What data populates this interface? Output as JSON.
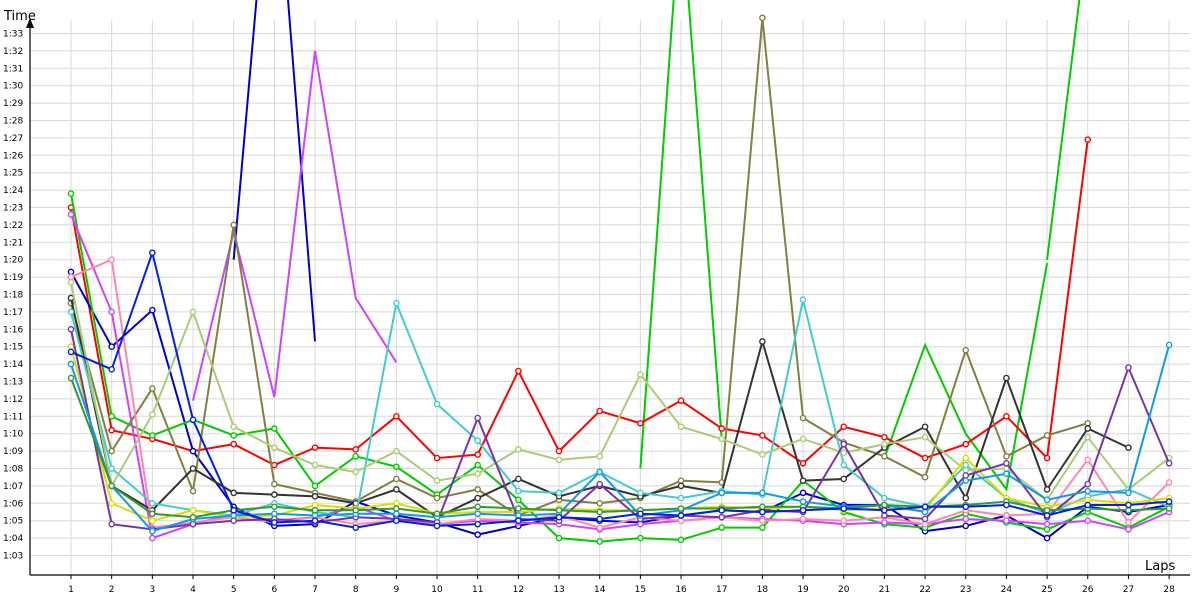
{
  "chart_data": {
    "type": "line",
    "xlabel": "Laps",
    "ylabel": "Time",
    "x": [
      1,
      2,
      3,
      4,
      5,
      6,
      7,
      8,
      9,
      10,
      11,
      12,
      13,
      14,
      15,
      16,
      17,
      18,
      19,
      20,
      21,
      22,
      23,
      24,
      25,
      26,
      27,
      28
    ],
    "x_ticks": [
      "1",
      "2",
      "3",
      "4",
      "5",
      "6",
      "7",
      "8",
      "9",
      "10",
      "11",
      "12",
      "13",
      "14",
      "15",
      "16",
      "17",
      "18",
      "19",
      "20",
      "21",
      "22",
      "23",
      "24",
      "25",
      "26",
      "27",
      "28"
    ],
    "y_ticks": [
      "1:03",
      "1:04",
      "1:05",
      "1:06",
      "1:07",
      "1:08",
      "1:09",
      "1:10",
      "1:11",
      "1:12",
      "1:13",
      "1:14",
      "1:15",
      "1:16",
      "1:17",
      "1:18",
      "1:19",
      "1:20",
      "1:21",
      "1:22",
      "1:23",
      "1:24",
      "1:25",
      "1:26",
      "1:27",
      "1:28",
      "1:29",
      "1:30",
      "1:31",
      "1:32",
      "1:33"
    ],
    "y_unit": "seconds",
    "ylim": [
      62,
      96
    ],
    "grid": true,
    "legend": "none",
    "series": [
      {
        "color": "#ff0000",
        "values": [
          83.0,
          70.2,
          69.7,
          69.0,
          69.4,
          68.2,
          69.2,
          69.1,
          71.0,
          68.6,
          68.8,
          73.6,
          69.0,
          71.3,
          70.6,
          71.9,
          70.3,
          69.9,
          68.3,
          70.4,
          69.8,
          68.6,
          69.4,
          71.0,
          68.6,
          86.9,
          null,
          null
        ]
      },
      {
        "color": "#0000cc",
        "values": [
          79.3,
          75.0,
          77.1,
          69.0,
          65.8,
          64.7,
          64.8,
          66.1,
          65.3,
          64.9,
          64.2,
          64.7,
          65.2,
          65.0,
          64.9,
          65.3,
          65.6,
          65.5,
          66.6,
          65.9,
          65.9,
          64.4,
          64.7,
          65.3,
          64.0,
          65.8,
          65.5,
          65.9
        ]
      },
      {
        "color": "#00cc00",
        "values": [
          83.8,
          71.0,
          69.9,
          70.8,
          69.9,
          70.3,
          67.0,
          68.7,
          68.1,
          66.5,
          68.2,
          66.2,
          64.0,
          63.8,
          64.0,
          63.9,
          64.6,
          64.6,
          67.3,
          65.5,
          64.8,
          64.6,
          65.4,
          64.9,
          64.5,
          65.5,
          64.6,
          65.8
        ]
      },
      {
        "color": "#cc44ff",
        "values": [
          82.6,
          77.0,
          64.0,
          64.8,
          65.4,
          65.0,
          65.2,
          65.8,
          65.0,
          64.8,
          65.0,
          64.9,
          64.8,
          64.5,
          64.8,
          65.0,
          65.2,
          65.1,
          65.0,
          64.8,
          64.9,
          64.8,
          65.1,
          65.0,
          64.8,
          65.0,
          64.5,
          65.5
        ]
      },
      {
        "color": "#808040",
        "values": [
          77.5,
          69.0,
          72.6,
          66.7,
          82.0,
          67.1,
          66.6,
          66.1,
          67.4,
          66.3,
          66.8,
          65.3,
          66.2,
          66.0,
          66.3,
          67.3,
          67.2,
          93.9,
          70.9,
          69.5,
          68.7,
          67.5,
          74.8,
          68.7,
          69.9,
          70.6,
          null,
          null
        ]
      },
      {
        "color": "#333333",
        "values": [
          77.8,
          67.0,
          65.6,
          68.0,
          66.6,
          66.5,
          66.4,
          66.0,
          66.8,
          65.2,
          66.3,
          67.4,
          66.4,
          67.0,
          66.4,
          67.0,
          66.6,
          75.3,
          67.3,
          67.4,
          69.2,
          70.4,
          66.3,
          73.2,
          66.8,
          70.3,
          69.2,
          null
        ]
      },
      {
        "color": "#44cccc",
        "values": [
          77.0,
          68.0,
          66.0,
          65.6,
          65.3,
          66.0,
          65.5,
          65.2,
          77.5,
          71.7,
          69.6,
          66.7,
          66.6,
          67.8,
          66.6,
          66.3,
          66.7,
          66.5,
          77.7,
          68.2,
          66.3,
          65.8,
          68.2,
          66.3,
          65.4,
          66.4,
          66.8,
          65.8
        ]
      },
      {
        "color": "#aacc77",
        "values": [
          78.7,
          67.0,
          71.1,
          77.0,
          70.4,
          69.2,
          68.2,
          67.8,
          69.0,
          67.3,
          67.7,
          69.1,
          68.5,
          68.7,
          73.4,
          70.4,
          69.7,
          68.8,
          69.7,
          68.9,
          69.4,
          69.8,
          67.9,
          68.0,
          66.2,
          69.8,
          66.8,
          68.6
        ]
      },
      {
        "color": "#ff88aa",
        "values": [
          79.0,
          80.0,
          64.6,
          64.9,
          65.2,
          64.9,
          65.2,
          64.8,
          65.0,
          64.8,
          65.1,
          65.0,
          65.3,
          64.6,
          65.2,
          65.0,
          65.2,
          65.0,
          65.1,
          65.0,
          65.2,
          64.8,
          65.6,
          65.3,
          65.4,
          68.5,
          64.9,
          67.2
        ]
      },
      {
        "color": "#dddd00",
        "values": [
          75.0,
          66.0,
          65.0,
          65.6,
          65.2,
          65.3,
          65.9,
          65.7,
          66.0,
          65.4,
          65.5,
          65.5,
          65.7,
          65.6,
          65.6,
          65.7,
          65.8,
          65.7,
          65.8,
          65.6,
          65.7,
          65.6,
          68.6,
          66.3,
          65.8,
          66.2,
          66.0,
          66.3
        ]
      },
      {
        "color": "#7733aa",
        "values": [
          76.0,
          64.8,
          64.5,
          64.8,
          65.0,
          65.1,
          64.9,
          65.2,
          65.1,
          64.9,
          70.9,
          65.1,
          65.0,
          67.1,
          65.1,
          65.3,
          65.2,
          65.6,
          65.5,
          69.4,
          65.3,
          65.1,
          67.6,
          68.3,
          65.2,
          67.1,
          73.8,
          68.3
        ]
      },
      {
        "color": "#1199ee",
        "values": [
          74.0,
          67.0,
          64.4,
          65.1,
          65.3,
          65.4,
          65.3,
          65.4,
          65.4,
          65.2,
          65.4,
          65.3,
          65.4,
          67.8,
          65.3,
          65.6,
          66.6,
          66.6,
          66.1,
          65.8,
          65.9,
          65.5,
          67.3,
          67.7,
          66.2,
          66.7,
          66.6,
          75.1
        ]
      },
      {
        "color": "#339933",
        "values": [
          73.2,
          67.0,
          65.4,
          65.2,
          65.6,
          65.8,
          65.6,
          65.6,
          65.7,
          65.4,
          65.8,
          65.7,
          65.6,
          65.5,
          65.6,
          65.7,
          65.7,
          65.8,
          65.8,
          65.7,
          65.9,
          65.8,
          65.9,
          66.1,
          65.6,
          65.7,
          65.6,
          65.7
        ]
      },
      {
        "color": "#0022dd",
        "values": [
          74.7,
          73.7,
          80.4,
          70.8,
          65.6,
          64.9,
          65.0,
          64.6,
          65.0,
          64.7,
          64.8,
          65.0,
          65.2,
          65.1,
          65.4,
          65.3,
          65.6,
          65.5,
          65.6,
          65.7,
          65.6,
          65.8,
          65.8,
          65.9,
          65.3,
          65.9,
          65.9,
          66.1
        ]
      }
    ],
    "spikes": [
      {
        "color": "#0000cc",
        "points": [
          [
            5,
            80.0
          ],
          [
            5.6,
            96.0
          ]
        ]
      },
      {
        "color": "#0000cc",
        "points": [
          [
            6.3,
            96.0
          ],
          [
            7,
            75.3
          ]
        ]
      },
      {
        "color": "#00cc00",
        "points": [
          [
            15,
            68.0
          ],
          [
            15.85,
            96.0
          ]
        ]
      },
      {
        "color": "#00cc00",
        "points": [
          [
            16.15,
            96.0
          ],
          [
            17,
            69.7
          ]
        ]
      },
      {
        "color": "#00cc00",
        "points": [
          [
            25,
            80.0
          ],
          [
            25.85,
            96.0
          ]
        ]
      },
      {
        "color": "#cc44ff",
        "points": [
          [
            4,
            71.9
          ],
          [
            5,
            81.6
          ],
          [
            6,
            72.1
          ],
          [
            7,
            92.0
          ],
          [
            8,
            77.8
          ],
          [
            9,
            74.1
          ]
        ]
      },
      {
        "color": "#00cc00",
        "points": [
          [
            21,
            68.6
          ],
          [
            22,
            75.1
          ],
          [
            23,
            70.0
          ],
          [
            24,
            66.8
          ],
          [
            25,
            79.8
          ]
        ]
      }
    ]
  }
}
